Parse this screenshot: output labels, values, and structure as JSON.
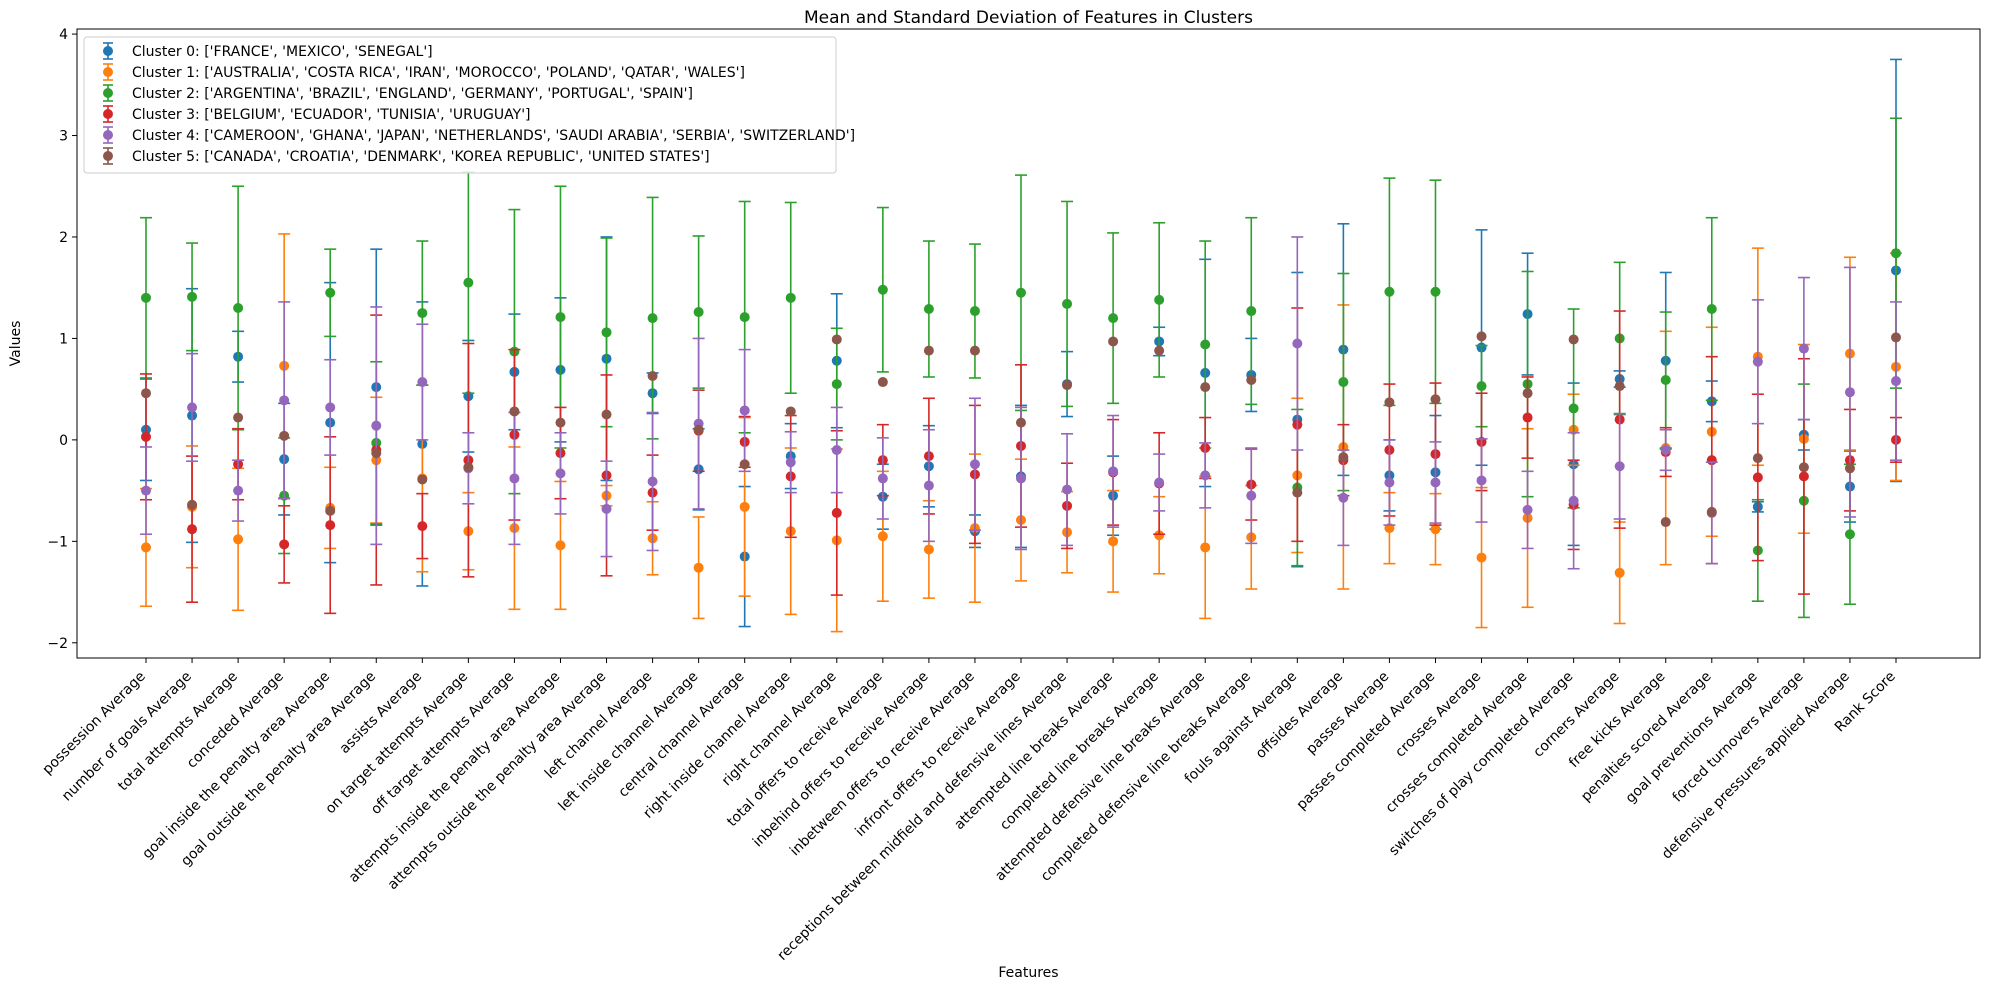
{
  "chart_data": {
    "type": "scatter",
    "title": "Mean and Standard Deviation of Features in Clusters",
    "xlabel": "Features",
    "ylabel": "Values",
    "ylim": [
      -2.15,
      4.05
    ],
    "yticks": [
      -2,
      -1,
      0,
      1,
      2,
      3,
      4
    ],
    "grid": false,
    "legend_position": "upper-left",
    "categories": [
      "possession Average",
      "number of goals Average",
      "total attempts Average",
      "conceded Average",
      "goal inside the penalty area Average",
      "goal outside the penalty area Average",
      "assists Average",
      "on target attempts Average",
      "off target attempts Average",
      "attempts inside the penalty area Average",
      "attempts outside the penalty area  Average",
      "left channel Average",
      "left inside channel Average",
      "central channel Average",
      "right inside channel Average",
      "right channel Average",
      "total offers to receive Average",
      "inbehind offers to receive Average",
      "inbetween offers to receive Average",
      "infront offers to receive Average",
      "receptions between midfield and defensive lines Average",
      "attempted line breaks Average",
      "completed line breaks Average",
      "attempted defensive line breaks Average",
      "completed defensive line breaks Average",
      "fouls against Average",
      "offsides Average",
      "passes Average",
      "passes completed Average",
      "crosses Average",
      "crosses completed Average",
      "switches of play completed Average",
      "corners Average",
      "free kicks Average",
      "penalties scored Average",
      "goal preventions Average",
      "forced turnovers Average",
      "defensive pressures applied Average",
      "Rank Score"
    ],
    "series": [
      {
        "name": "Cluster 0: ['FRANCE', 'MEXICO', 'SENEGAL']",
        "color": "#1f77b4",
        "values": [
          0.1,
          0.24,
          0.82,
          -0.19,
          0.17,
          0.52,
          -0.04,
          0.43,
          0.67,
          0.69,
          0.8,
          0.46,
          -0.29,
          -1.15,
          -0.16,
          0.78,
          -0.56,
          -0.26,
          -0.9,
          -0.36,
          0.55,
          -0.55,
          0.97,
          0.66,
          0.64,
          0.2,
          0.89,
          -0.35,
          -0.32,
          0.91,
          1.24,
          -0.24,
          0.6,
          0.78,
          0.38,
          -0.66,
          0.05,
          -0.46,
          1.67
        ],
        "errors": [
          0.5,
          1.25,
          0.25,
          0.55,
          1.38,
          1.36,
          1.4,
          0.55,
          0.57,
          0.71,
          1.2,
          0.2,
          0.4,
          0.69,
          0.32,
          0.66,
          0.32,
          0.4,
          0.16,
          0.7,
          0.32,
          0.39,
          0.14,
          1.12,
          0.36,
          1.45,
          1.24,
          0.35,
          0.56,
          1.16,
          0.6,
          0.8,
          0.08,
          0.87,
          0.2,
          0.05,
          0.15,
          0.35,
          2.08
        ]
      },
      {
        "name": "Cluster 1: ['AUSTRALIA', 'COSTA RICA', 'IRAN', 'MOROCCO', 'POLAND', 'QATAR', 'WALES']",
        "color": "#ff7f0e",
        "values": [
          -1.06,
          -0.66,
          -0.98,
          0.73,
          -0.67,
          -0.2,
          -0.38,
          -0.9,
          -0.87,
          -1.04,
          -0.55,
          -0.97,
          -1.26,
          -0.66,
          -0.9,
          -0.99,
          -0.95,
          -1.08,
          -0.87,
          -0.79,
          -0.91,
          -1.0,
          -0.94,
          -1.06,
          -0.96,
          -0.35,
          -0.07,
          -0.87,
          -0.88,
          -1.16,
          -0.77,
          0.1,
          -1.31,
          -0.08,
          0.08,
          0.82,
          0.01,
          0.85,
          0.72
        ],
        "errors": [
          0.58,
          0.6,
          0.7,
          1.3,
          0.4,
          0.62,
          0.92,
          0.38,
          0.8,
          0.63,
          0.1,
          0.36,
          0.5,
          0.88,
          0.82,
          0.9,
          0.64,
          0.48,
          0.73,
          0.6,
          0.4,
          0.5,
          0.38,
          0.7,
          0.51,
          0.76,
          1.4,
          0.35,
          0.35,
          0.69,
          0.88,
          0.35,
          0.5,
          1.15,
          1.03,
          1.07,
          0.93,
          0.95,
          1.12
        ]
      },
      {
        "name": "Cluster 2: ['ARGENTINA', 'BRAZIL', 'ENGLAND', 'GERMANY', 'PORTUGAL', 'SPAIN']",
        "color": "#2ca02c",
        "values": [
          1.4,
          1.41,
          1.3,
          -0.55,
          1.45,
          -0.03,
          1.25,
          1.55,
          0.87,
          1.21,
          1.06,
          1.2,
          1.26,
          1.21,
          1.4,
          0.55,
          1.48,
          1.29,
          1.27,
          1.45,
          1.34,
          1.2,
          1.38,
          0.94,
          1.27,
          -0.47,
          0.57,
          1.46,
          1.46,
          0.53,
          0.55,
          0.31,
          1.0,
          0.59,
          1.29,
          -1.09,
          -0.6,
          -0.93,
          1.84
        ],
        "errors": [
          0.79,
          0.53,
          1.2,
          0.57,
          0.43,
          0.8,
          0.71,
          1.09,
          1.4,
          1.29,
          0.93,
          1.19,
          0.75,
          1.14,
          0.94,
          0.55,
          0.81,
          0.67,
          0.66,
          1.16,
          1.01,
          0.84,
          0.76,
          1.02,
          0.92,
          0.77,
          1.07,
          1.12,
          1.1,
          0.4,
          1.11,
          0.98,
          0.75,
          0.67,
          0.9,
          0.5,
          1.15,
          0.69,
          1.33
        ]
      },
      {
        "name": "Cluster 3: ['BELGIUM', 'ECUADOR', 'TUNISIA', 'URUGUAY']",
        "color": "#d62728",
        "values": [
          0.03,
          -0.88,
          -0.24,
          -1.03,
          -0.84,
          -0.1,
          -0.85,
          -0.2,
          0.05,
          -0.13,
          -0.35,
          -0.52,
          0.09,
          -0.02,
          -0.36,
          -0.72,
          -0.2,
          -0.16,
          -0.34,
          -0.06,
          -0.65,
          -0.32,
          -0.43,
          -0.08,
          -0.44,
          0.15,
          -0.2,
          -0.1,
          -0.14,
          -0.02,
          0.22,
          -0.64,
          0.2,
          -0.12,
          -0.2,
          -0.37,
          -0.36,
          -0.2,
          0.0
        ],
        "errors": [
          0.62,
          0.72,
          0.35,
          0.38,
          0.87,
          1.33,
          0.32,
          1.15,
          0.84,
          0.45,
          0.99,
          0.37,
          0.4,
          0.25,
          0.6,
          0.81,
          0.35,
          0.57,
          0.68,
          0.8,
          0.42,
          0.52,
          0.5,
          0.3,
          0.35,
          1.15,
          0.35,
          0.65,
          0.7,
          0.48,
          0.4,
          0.44,
          1.07,
          0.24,
          1.02,
          0.82,
          1.16,
          0.5,
          0.22
        ]
      },
      {
        "name": "Cluster 4: ['CAMEROON', 'GHANA', 'JAPAN', 'NETHERLANDS', 'SAUDI ARABIA', 'SERBIA', 'SWITZERLAND']",
        "color": "#9467bd",
        "values": [
          -0.5,
          0.32,
          -0.5,
          0.39,
          0.32,
          0.14,
          0.57,
          -0.28,
          -0.38,
          -0.33,
          -0.68,
          -0.41,
          0.16,
          0.29,
          -0.22,
          -0.1,
          -0.38,
          -0.45,
          -0.24,
          -0.38,
          -0.49,
          -0.31,
          -0.42,
          -0.35,
          -0.55,
          0.95,
          -0.57,
          -0.42,
          -0.42,
          -0.4,
          -0.69,
          -0.6,
          -0.26,
          -0.1,
          -0.72,
          0.77,
          0.9,
          0.47,
          0.58
        ],
        "errors": [
          0.43,
          0.53,
          0.3,
          0.97,
          0.47,
          1.17,
          0.57,
          0.35,
          0.65,
          0.4,
          0.47,
          0.68,
          0.84,
          0.6,
          0.3,
          0.42,
          0.4,
          0.55,
          0.65,
          0.7,
          0.55,
          0.55,
          0.28,
          0.32,
          0.47,
          1.05,
          0.47,
          0.42,
          0.4,
          0.41,
          0.38,
          0.67,
          0.52,
          0.2,
          0.5,
          0.61,
          0.7,
          1.23,
          0.78
        ]
      },
      {
        "name": "Cluster 5: ['CANADA', 'CROATIA', 'DENMARK', 'KOREA REPUBLIC', 'UNITED STATES']",
        "color": "#8c564b",
        "values": [
          0.46,
          -0.64,
          0.22,
          0.04,
          -0.7,
          -0.13,
          -0.39,
          -0.27,
          0.28,
          0.17,
          0.25,
          0.63,
          0.1,
          -0.24,
          0.28,
          0.99,
          0.57,
          0.88,
          0.88,
          0.17,
          0.54,
          0.97,
          0.88,
          0.52,
          0.59,
          -0.52,
          -0.17,
          0.37,
          0.4,
          1.02,
          0.46,
          0.99,
          0.53,
          -0.81,
          -0.71,
          -0.18,
          -0.27,
          -0.28,
          1.01
        ]
      }
    ]
  }
}
